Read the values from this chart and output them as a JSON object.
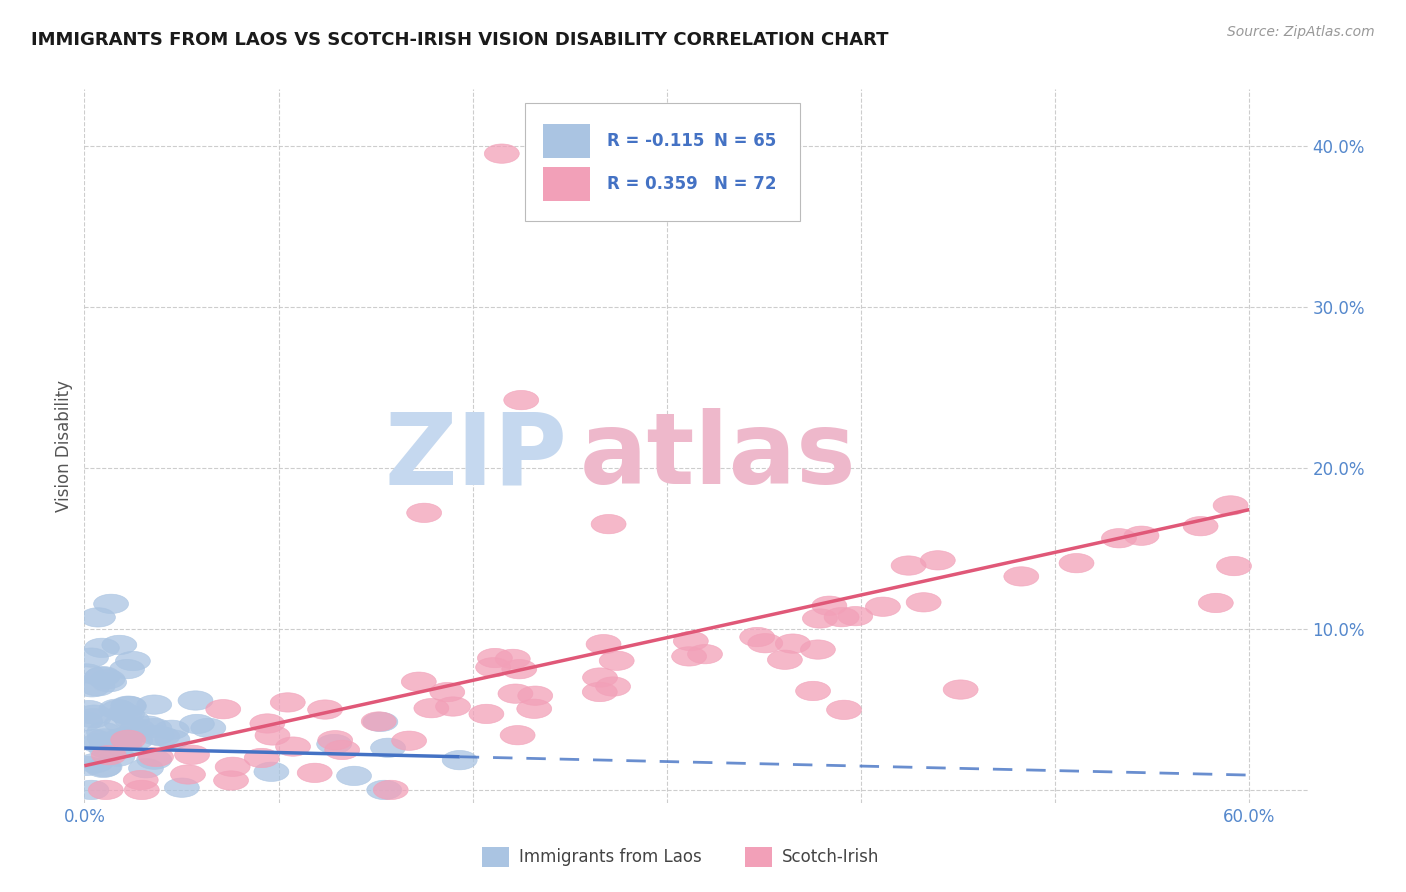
{
  "title": "IMMIGRANTS FROM LAOS VS SCOTCH-IRISH VISION DISABILITY CORRELATION CHART",
  "source": "Source: ZipAtlas.com",
  "ylabel": "Vision Disability",
  "xlim": [
    0.0,
    0.63
  ],
  "ylim": [
    -0.008,
    0.435
  ],
  "yticks": [
    0.0,
    0.1,
    0.2,
    0.3,
    0.4
  ],
  "ytick_labels": [
    "",
    "10.0%",
    "20.0%",
    "30.0%",
    "40.0%"
  ],
  "xticks": [
    0.0,
    0.1,
    0.2,
    0.3,
    0.4,
    0.5,
    0.6
  ],
  "legend_r1": "R = -0.115",
  "legend_n1": "N = 65",
  "legend_r2": "R = 0.359",
  "legend_n2": "N = 72",
  "series1_label": "Immigrants from Laos",
  "series2_label": "Scotch-Irish",
  "color1": "#aac4e2",
  "color2": "#f2a0b8",
  "line_color1": "#4472c4",
  "line_color2": "#e05878",
  "background_color": "#ffffff",
  "grid_color": "#c8c8c8",
  "title_color": "#1a1a1a",
  "watermark_color1": "#c5d8ef",
  "watermark_color2": "#eeb8cb"
}
